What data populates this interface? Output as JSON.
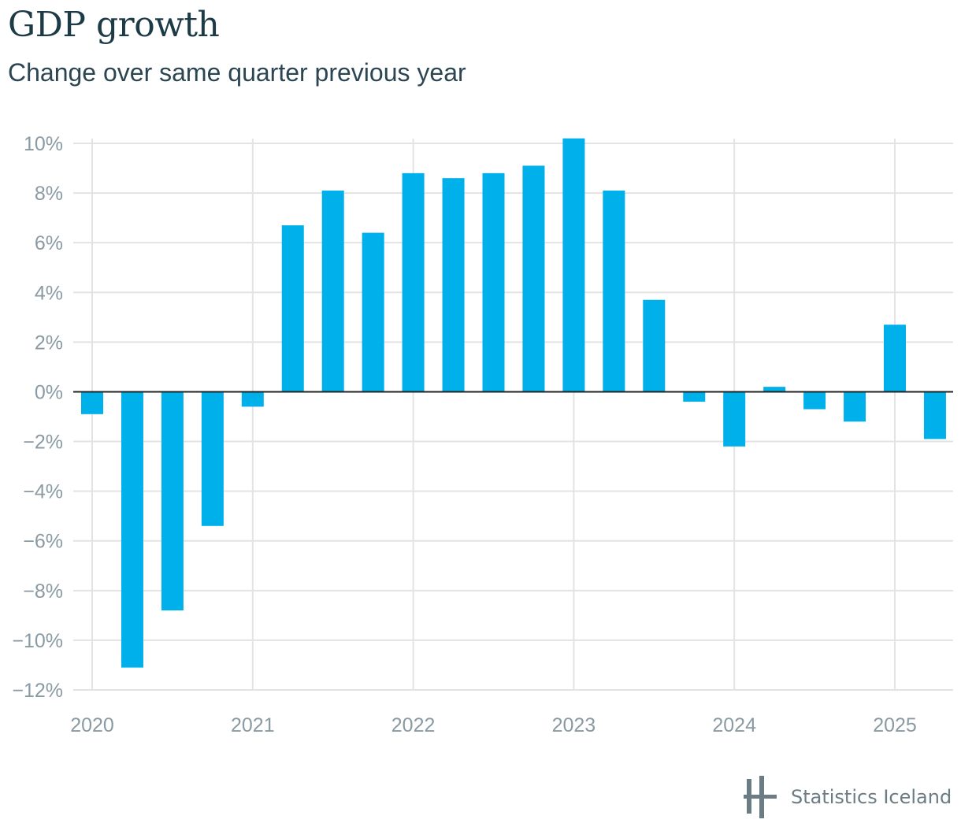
{
  "header": {
    "title": "GDP growth",
    "subtitle": "Change over same quarter previous year"
  },
  "branding": {
    "name": "Statistics Iceland"
  },
  "colors": {
    "bar": "#00b0ea",
    "zero_line": "#222222",
    "grid": "#e3e3e3",
    "tick": "#8a9aa3"
  },
  "chart_data": {
    "type": "bar",
    "title": "GDP growth",
    "subtitle": "Change over same quarter previous year",
    "xlabel": "",
    "ylabel": "",
    "unit": "%",
    "ylim": [
      -12,
      10
    ],
    "y_ticks": [
      10,
      8,
      6,
      4,
      2,
      0,
      -2,
      -4,
      -6,
      -8,
      -10,
      -12
    ],
    "y_tick_labels": [
      "10%",
      "8%",
      "6%",
      "4%",
      "2%",
      "0%",
      "−2%",
      "−4%",
      "−6%",
      "−8%",
      "−10%",
      "−12%"
    ],
    "x_tick_labels": [
      "2020",
      "2021",
      "2022",
      "2023",
      "2024",
      "2025"
    ],
    "grid": true,
    "categories": [
      "2020 Q1",
      "2020 Q2",
      "2020 Q3",
      "2020 Q4",
      "2021 Q1",
      "2021 Q2",
      "2021 Q3",
      "2021 Q4",
      "2022 Q1",
      "2022 Q2",
      "2022 Q3",
      "2022 Q4",
      "2023 Q1",
      "2023 Q2",
      "2023 Q3",
      "2023 Q4",
      "2024 Q1",
      "2024 Q2",
      "2024 Q3",
      "2024 Q4",
      "2025 Q1",
      "2025 Q2"
    ],
    "values": [
      -0.9,
      -11.1,
      -8.8,
      -5.4,
      -0.6,
      6.7,
      8.1,
      6.4,
      8.8,
      8.6,
      8.8,
      9.1,
      10.2,
      8.1,
      3.7,
      -0.4,
      -2.2,
      0.2,
      -0.7,
      -1.2,
      2.7,
      -1.9
    ]
  }
}
